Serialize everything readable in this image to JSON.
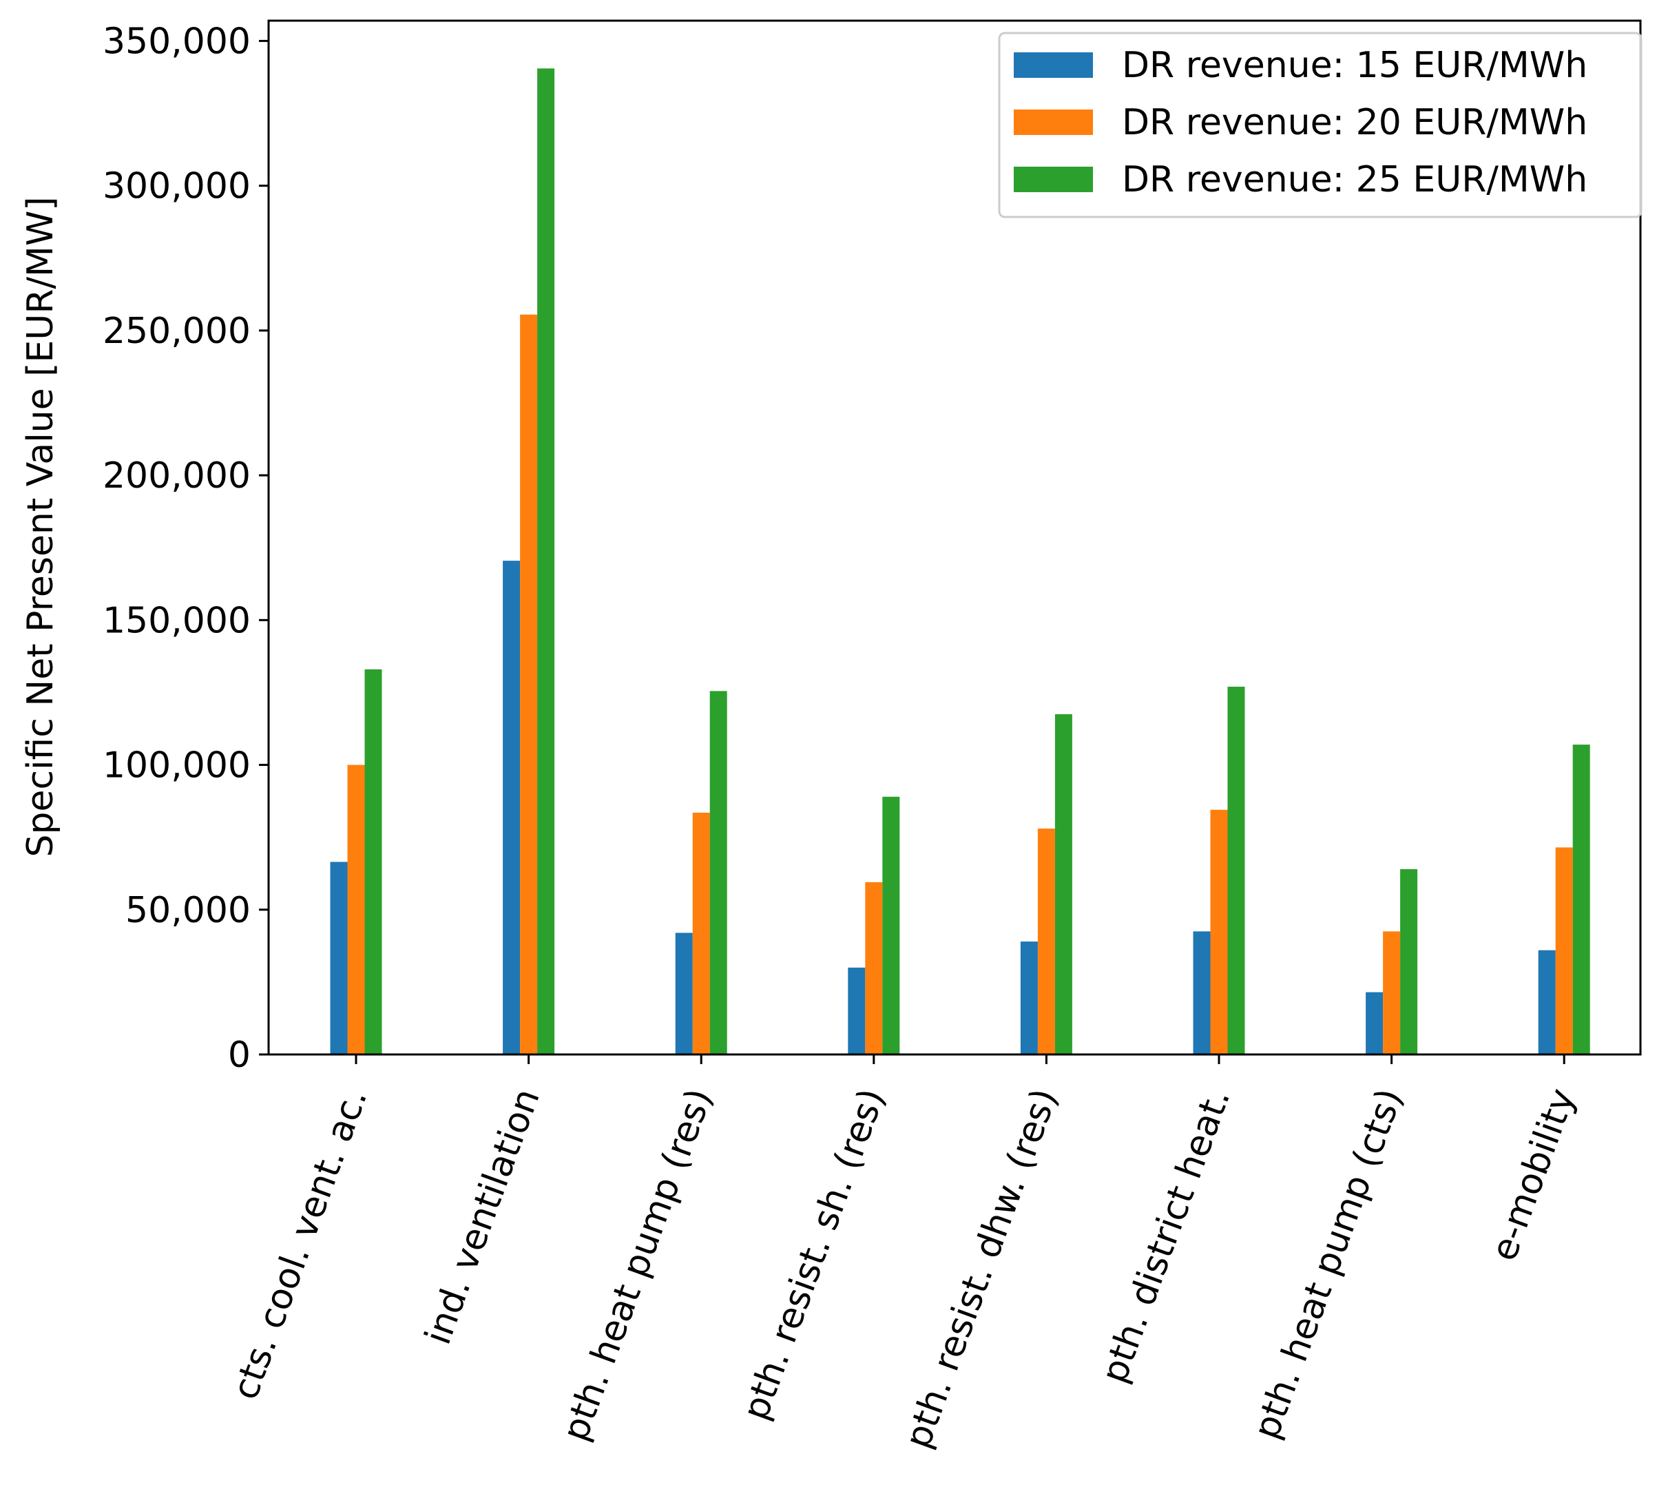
{
  "chart_data": {
    "type": "bar",
    "title": "",
    "xlabel": "",
    "ylabel": "Specific Net Present Value [EUR/MW]",
    "ylim": [
      0,
      357000
    ],
    "yticks": [
      0,
      50000,
      100000,
      150000,
      200000,
      250000,
      300000,
      350000
    ],
    "ytick_labels": [
      "0",
      "50,000",
      "100,000",
      "150,000",
      "200,000",
      "250,000",
      "300,000",
      "350,000"
    ],
    "grid": false,
    "legend_position": "top-right",
    "categories": [
      "cts. cool. vent. ac.",
      "ind. ventilation",
      "pth. heat pump (res)",
      "pth. resist. sh. (res)",
      "pth. resist. dhw. (res)",
      "pth. district heat.",
      "pth. heat pump (cts)",
      "e-mobility"
    ],
    "series": [
      {
        "name": "DR revenue: 15 EUR/MWh",
        "color": "#1f77b4",
        "values": [
          66500,
          170500,
          42000,
          30000,
          39000,
          42500,
          21500,
          36000
        ]
      },
      {
        "name": "DR revenue: 20 EUR/MWh",
        "color": "#ff7f0e",
        "values": [
          100000,
          255500,
          83500,
          59500,
          78000,
          84500,
          42500,
          71500
        ]
      },
      {
        "name": "DR revenue: 25 EUR/MWh",
        "color": "#2ca02c",
        "values": [
          133000,
          340500,
          125500,
          89000,
          117500,
          127000,
          64000,
          107000
        ]
      }
    ]
  }
}
